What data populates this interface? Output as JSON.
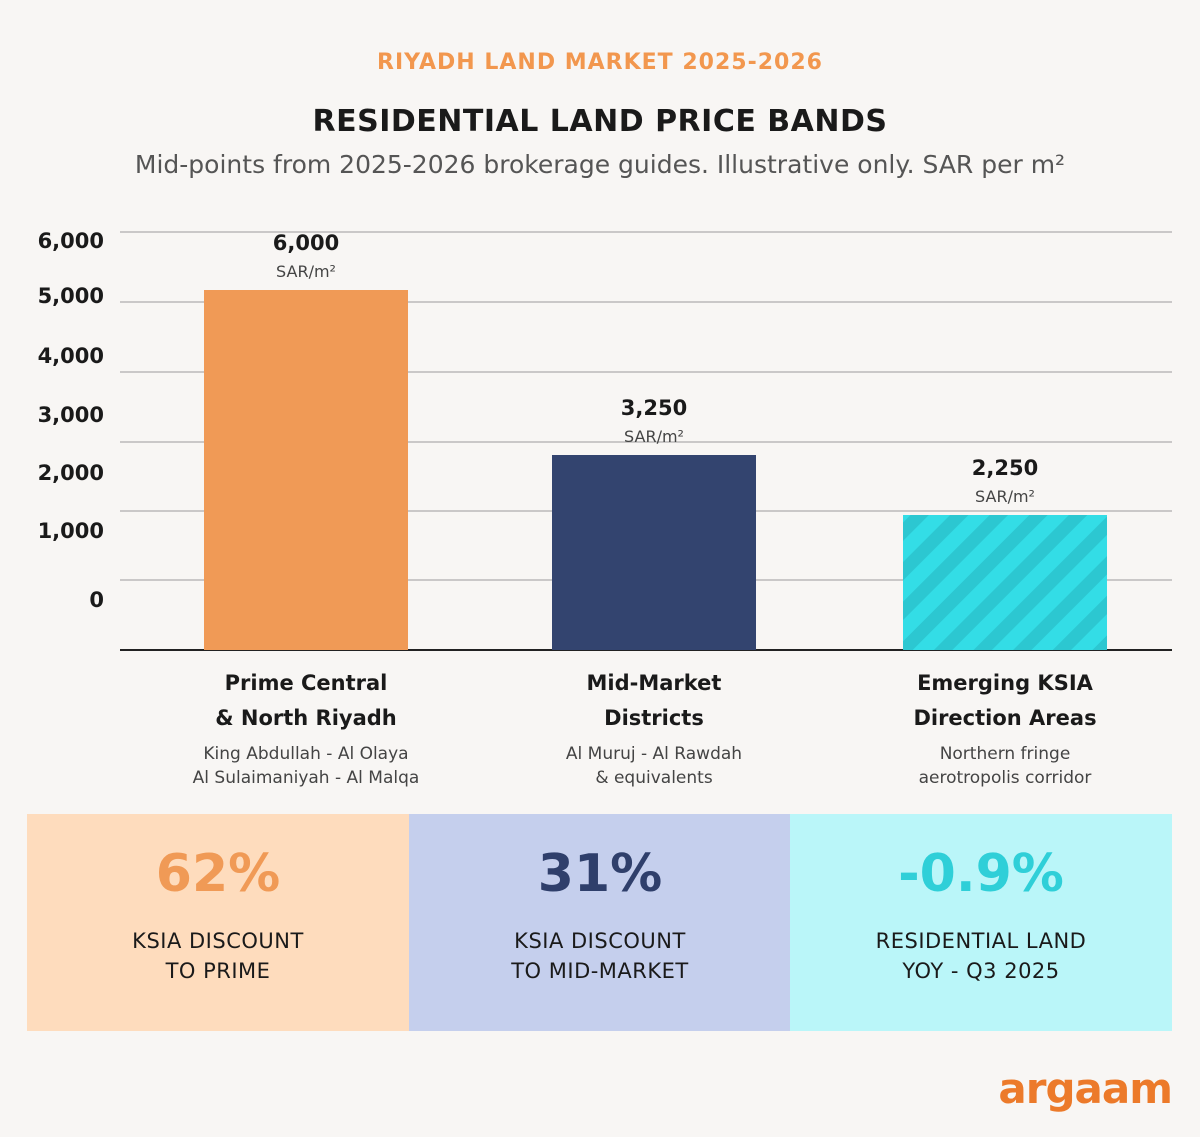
{
  "header": {
    "kicker": "RIYADH LAND MARKET 2025-2026",
    "title": "RESIDENTIAL LAND PRICE BANDS",
    "subtitle": "Mid-points from 2025-2026 brokerage guides. Illustrative only. SAR per m²"
  },
  "chart_data": {
    "type": "bar",
    "title": "RESIDENTIAL LAND PRICE BANDS",
    "categories": [
      "Prime Central & North Riyadh",
      "Mid-Market Districts",
      "Emerging KSIA Direction Areas"
    ],
    "values": [
      6000,
      3250,
      2250
    ],
    "value_labels": [
      "6,000",
      "3,250",
      "2,250"
    ],
    "unit_label": "SAR/m²",
    "y_ticks": [
      "6,000",
      "5,000",
      "4,000",
      "3,000",
      "2,000",
      "1,000",
      "0"
    ],
    "ylim": [
      0,
      6000
    ],
    "grid": true,
    "legend": "none",
    "colors": [
      "#f09a56",
      "#33446f",
      "#33dde6"
    ],
    "patterns": [
      "solid",
      "solid",
      "diagonal-stripes"
    ]
  },
  "categories": [
    {
      "line1": "Prime Central",
      "line2": "& North Riyadh",
      "sub1": "King Abdullah - Al Olaya",
      "sub2": "Al Sulaimaniyah - Al Malqa"
    },
    {
      "line1": "Mid-Market",
      "line2": "Districts",
      "sub1": "Al Muruj - Al Rawdah",
      "sub2": "& equivalents"
    },
    {
      "line1": "Emerging KSIA",
      "line2": "Direction Areas",
      "sub1": "Northern fringe",
      "sub2": "aerotropolis corridor"
    }
  ],
  "stats": [
    {
      "value": "62%",
      "line1": "KSIA DISCOUNT",
      "line2": "TO PRIME",
      "bg": "#fedcbd",
      "color": "#f09a56"
    },
    {
      "value": "31%",
      "line1": "KSIA DISCOUNT",
      "line2": "TO MID-MARKET",
      "bg": "#c5cfed",
      "color": "#2f3f6b"
    },
    {
      "value": "-0.9%",
      "line1": "RESIDENTIAL LAND",
      "line2": "YOY - Q3 2025",
      "bg": "#baf6f9",
      "color": "#2fcfd8"
    }
  ],
  "brand": {
    "logo": "argaam",
    "color": "#ec7a2a"
  }
}
